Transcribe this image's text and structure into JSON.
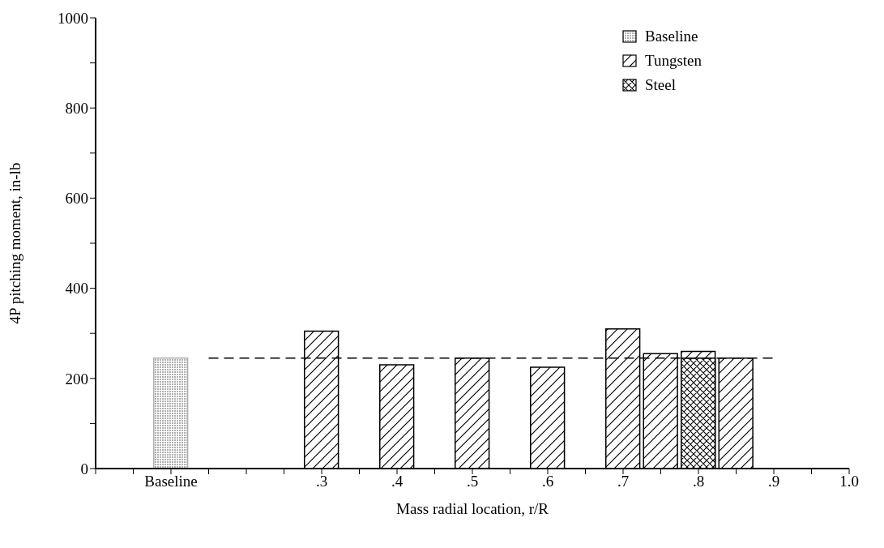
{
  "chart_data": {
    "type": "bar",
    "xlabel": "Mass radial location, r/R",
    "ylabel": "4P pitching moment, in-lb",
    "xlim": [
      0,
      1.0
    ],
    "xticks": [
      {
        "value": 0,
        "label": null
      },
      {
        "value": 0.05,
        "label": null
      },
      {
        "value": 0.1,
        "label": "Baseline"
      },
      {
        "value": 0.15,
        "label": null
      },
      {
        "value": 0.2,
        "label": null
      },
      {
        "value": 0.25,
        "label": null
      },
      {
        "value": 0.3,
        "label": ".3"
      },
      {
        "value": 0.35,
        "label": null
      },
      {
        "value": 0.4,
        "label": ".4"
      },
      {
        "value": 0.45,
        "label": null
      },
      {
        "value": 0.5,
        "label": ".5"
      },
      {
        "value": 0.55,
        "label": null
      },
      {
        "value": 0.6,
        "label": ".6"
      },
      {
        "value": 0.65,
        "label": null
      },
      {
        "value": 0.7,
        "label": ".7"
      },
      {
        "value": 0.75,
        "label": null
      },
      {
        "value": 0.8,
        "label": ".8"
      },
      {
        "value": 0.85,
        "label": null
      },
      {
        "value": 0.9,
        "label": ".9"
      },
      {
        "value": 0.95,
        "label": null
      },
      {
        "value": 1.0,
        "label": "1.0"
      }
    ],
    "ylim": [
      0,
      1000
    ],
    "yticks": [
      0,
      {
        "value": 100,
        "label": null
      },
      200,
      {
        "value": 300,
        "label": null
      },
      400,
      {
        "value": 500,
        "label": null
      },
      600,
      {
        "value": 700,
        "label": null
      },
      800,
      {
        "value": 900,
        "label": null
      },
      1000
    ],
    "legend": "top right",
    "series": [
      {
        "name": "Baseline",
        "color": "#b0b0b0",
        "x": [
          0.1
        ],
        "values": [
          245
        ]
      },
      {
        "name": "Tungsten",
        "color": "#000000",
        "x": [
          0.3,
          0.4,
          0.5,
          0.6,
          0.7,
          0.75,
          0.8,
          0.85
        ],
        "values": [
          305,
          230,
          245,
          225,
          310,
          255,
          260,
          245
        ]
      },
      {
        "name": "Steel",
        "color": "#000000",
        "x": [
          0.8
        ],
        "values": [
          245
        ]
      },
      {
        "type": "line",
        "color": "#000000",
        "x": [
          0.15,
          0.9
        ],
        "values": [
          245,
          245
        ],
        "line_style": "dashed",
        "marker": "none"
      }
    ]
  }
}
